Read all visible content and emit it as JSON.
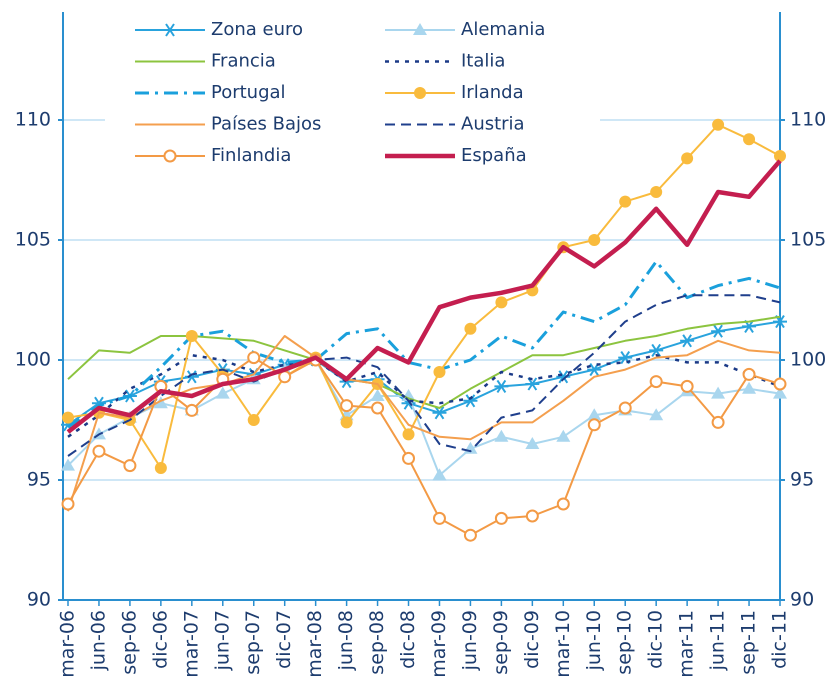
{
  "chart_data": {
    "type": "line",
    "categories": [
      "mar-06",
      "jun-06",
      "sep-06",
      "dic-06",
      "mar-07",
      "jun-07",
      "sep-07",
      "dic-07",
      "mar-08",
      "jun-08",
      "sep-08",
      "dic-08",
      "mar-09",
      "jun-09",
      "sep-09",
      "dic-09",
      "mar-10",
      "jun-10",
      "sep-10",
      "dic-10",
      "mar-11",
      "jun-11",
      "sep-11",
      "dic-11"
    ],
    "ylim": [
      90,
      114
    ],
    "yticks": [
      90,
      95,
      100,
      105,
      110
    ],
    "grid": true,
    "right_axis_labels": true,
    "series": [
      {
        "name": "Zona euro",
        "color": "#29a3dd",
        "dash": "solid",
        "marker": "star",
        "width": 2,
        "values": [
          97.3,
          98.2,
          98.5,
          99.1,
          99.3,
          99.6,
          99.4,
          99.8,
          100.0,
          99.1,
          99.2,
          98.2,
          97.8,
          98.3,
          98.9,
          99.0,
          99.3,
          99.6,
          100.1,
          100.4,
          100.8,
          101.2,
          101.4,
          101.6
        ]
      },
      {
        "name": "Alemania",
        "color": "#a9d6ee",
        "dash": "solid",
        "marker": "triangle",
        "width": 2,
        "values": [
          95.6,
          96.9,
          97.6,
          98.2,
          97.9,
          98.6,
          99.2,
          99.6,
          100.0,
          97.7,
          98.5,
          98.5,
          95.2,
          96.3,
          96.8,
          96.5,
          96.8,
          97.7,
          97.9,
          97.7,
          98.7,
          98.6,
          98.8,
          98.6
        ]
      },
      {
        "name": "Francia",
        "color": "#8cc43f",
        "dash": "solid",
        "marker": "none",
        "width": 2,
        "values": [
          99.2,
          100.4,
          100.3,
          101.0,
          101.0,
          100.9,
          100.8,
          100.4,
          100.0,
          99.2,
          99.0,
          98.4,
          98.0,
          98.8,
          99.5,
          100.2,
          100.2,
          100.5,
          100.8,
          101.0,
          101.3,
          101.5,
          101.6,
          101.8
        ]
      },
      {
        "name": "Italia",
        "color": "#1b3a87",
        "dash": "dot",
        "marker": "none",
        "width": 2.5,
        "values": [
          96.8,
          97.7,
          98.8,
          99.4,
          100.2,
          100.0,
          99.5,
          99.8,
          100.0,
          99.1,
          99.5,
          98.3,
          98.2,
          98.4,
          99.5,
          99.2,
          99.4,
          99.8,
          99.9,
          100.2,
          99.9,
          99.9,
          99.4,
          98.9
        ]
      },
      {
        "name": "Portugal",
        "color": "#1aa0dc",
        "dash": "dashdot",
        "marker": "none",
        "width": 3,
        "values": [
          97.2,
          98.1,
          98.5,
          99.7,
          101.0,
          101.2,
          100.3,
          99.9,
          100.0,
          101.1,
          101.3,
          99.9,
          99.6,
          100.0,
          101.0,
          100.5,
          102.0,
          101.6,
          102.3,
          104.1,
          102.6,
          103.1,
          103.4,
          103.0
        ]
      },
      {
        "name": "Irlanda",
        "color": "#f9bb3d",
        "dash": "solid",
        "marker": "circle",
        "width": 2,
        "values": [
          97.6,
          97.8,
          97.5,
          95.5,
          101.0,
          99.4,
          97.5,
          99.3,
          100.1,
          97.4,
          99.0,
          96.9,
          99.5,
          101.3,
          102.4,
          102.9,
          104.7,
          105.0,
          106.6,
          107.0,
          108.4,
          109.8,
          109.2,
          108.5
        ]
      },
      {
        "name": "Países Bajos",
        "color": "#f49f4e",
        "dash": "solid",
        "marker": "none",
        "width": 2,
        "values": [
          93.7,
          97.8,
          97.6,
          98.3,
          98.8,
          99.0,
          99.4,
          101.0,
          100.1,
          99.2,
          99.0,
          97.3,
          96.8,
          96.7,
          97.4,
          97.4,
          98.3,
          99.3,
          99.6,
          100.1,
          100.2,
          100.8,
          100.4,
          100.3
        ]
      },
      {
        "name": "Austria",
        "color": "#1f3f8c",
        "dash": "dash",
        "marker": "none",
        "width": 2,
        "values": [
          96.0,
          96.9,
          97.5,
          98.5,
          99.4,
          99.6,
          99.1,
          99.6,
          100.0,
          100.1,
          99.7,
          98.3,
          96.5,
          96.2,
          97.6,
          97.9,
          99.2,
          100.3,
          101.6,
          102.3,
          102.7,
          102.7,
          102.7,
          102.4
        ]
      },
      {
        "name": "Finlandia",
        "color": "#f39a45",
        "dash": "solid",
        "marker": "open-circle",
        "width": 2,
        "values": [
          94.0,
          96.2,
          95.6,
          98.9,
          97.9,
          99.2,
          100.1,
          99.3,
          100.0,
          98.1,
          98.0,
          95.9,
          93.4,
          92.7,
          93.4,
          93.5,
          94.0,
          97.3,
          98.0,
          99.1,
          98.9,
          97.4,
          99.4,
          99.0
        ]
      },
      {
        "name": "España",
        "color": "#c41e4f",
        "dash": "solid",
        "marker": "none",
        "width": 4.5,
        "values": [
          97.0,
          98.0,
          97.7,
          98.7,
          98.5,
          99.0,
          99.2,
          99.6,
          100.1,
          99.2,
          100.5,
          99.9,
          102.2,
          102.6,
          102.8,
          103.1,
          104.7,
          103.9,
          104.9,
          106.3,
          104.8,
          107.0,
          106.8,
          108.3
        ]
      }
    ]
  }
}
